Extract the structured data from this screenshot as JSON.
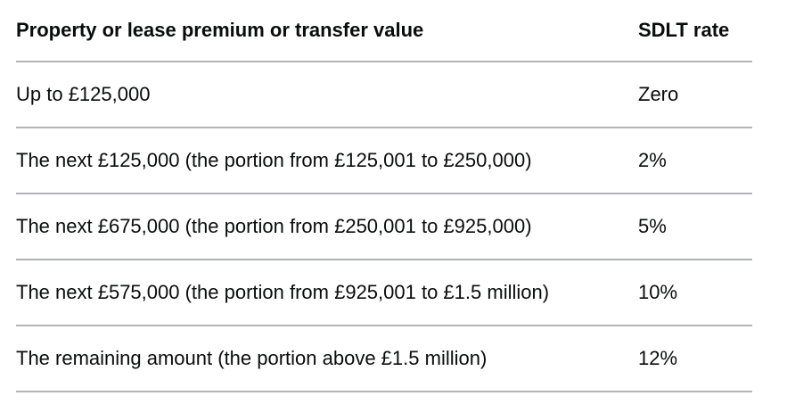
{
  "table": {
    "headers": {
      "value": "Property or lease premium or transfer value",
      "rate": "SDLT rate"
    },
    "rows": [
      {
        "value": "Up to £125,000",
        "rate": "Zero"
      },
      {
        "value": "The next £125,000 (the portion from £125,001 to £250,000)",
        "rate": "2%"
      },
      {
        "value": "The next £675,000 (the portion from £250,001 to £925,000)",
        "rate": "5%"
      },
      {
        "value": "The next £575,000 (the portion from £925,001 to £1.5 million)",
        "rate": "10%"
      },
      {
        "value": "The remaining amount (the portion above £1.5 million)",
        "rate": "12%"
      }
    ]
  }
}
